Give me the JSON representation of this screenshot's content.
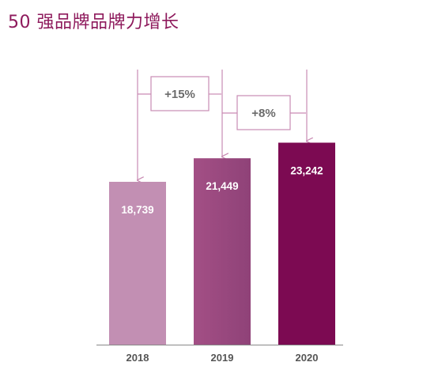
{
  "chart_data": {
    "type": "bar",
    "title": "50 强品牌品牌力增长",
    "categories": [
      "2018",
      "2019",
      "2020"
    ],
    "values": [
      18739,
      21449,
      23242
    ],
    "data_labels": [
      "18,739",
      "21,449",
      "23,242"
    ],
    "growth_annotations": [
      {
        "from": "2018",
        "to": "2019",
        "label": "+15%"
      },
      {
        "from": "2019",
        "to": "2020",
        "label": "+8%"
      }
    ],
    "grid": false,
    "legend": "none",
    "colors": [
      "#c28fb3",
      "#9a4b7f",
      "#7c0a52"
    ],
    "accent_color": "#8e1a5c",
    "annotation_color": "#c98bb3"
  }
}
